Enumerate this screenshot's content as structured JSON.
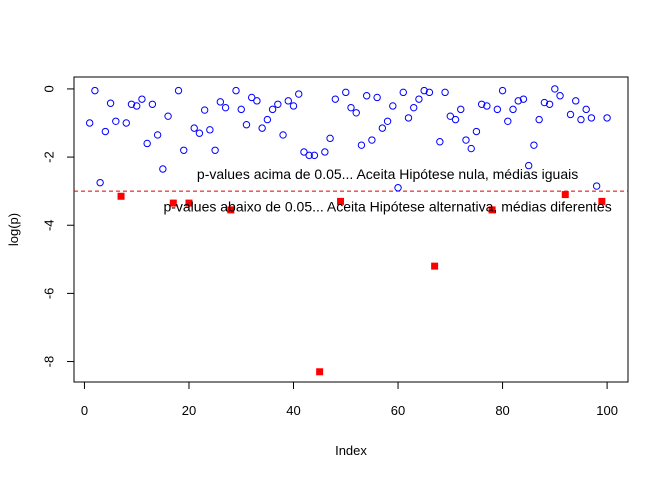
{
  "chart_data": {
    "type": "scatter",
    "title": "",
    "xlabel": "Index",
    "ylabel": "log(p)",
    "xlim": [
      -2,
      104
    ],
    "ylim": [
      -8.6,
      0.35
    ],
    "x_ticks": [
      0,
      20,
      40,
      60,
      80,
      100
    ],
    "y_ticks": [
      0,
      -2,
      -4,
      -6,
      -8
    ],
    "grid": false,
    "legend": "none",
    "threshold": {
      "y": -3.0,
      "color": "#dd0000",
      "style": "dashed"
    },
    "annotations": [
      {
        "text": "p-values acima de 0.05... Aceita Hipótese nula, médias iguais",
        "x": 58,
        "y": -2.65
      },
      {
        "text": "p-values abaixo de 0.05... Aceita Hipótese alternativa, médias diferentes",
        "x": 58,
        "y": -3.6
      }
    ],
    "series": [
      {
        "marker": "open-circle",
        "color": "#0000ff",
        "x": [
          1,
          2,
          3,
          4,
          5,
          6,
          8,
          9,
          10,
          11,
          12,
          13,
          14,
          15,
          16,
          18,
          19,
          21,
          22,
          23,
          24,
          25,
          26,
          27,
          29,
          30,
          31,
          32,
          33,
          34,
          35,
          36,
          37,
          38,
          39,
          40,
          41,
          42,
          43,
          44,
          46,
          47,
          48,
          50,
          51,
          52,
          53,
          54,
          55,
          56,
          57,
          58,
          59,
          60,
          61,
          62,
          63,
          64,
          65,
          66,
          68,
          69,
          70,
          71,
          72,
          73,
          74,
          75,
          76,
          77,
          79,
          80,
          81,
          82,
          83,
          84,
          85,
          86,
          87,
          88,
          89,
          90,
          91,
          93,
          94,
          95,
          96,
          97,
          98,
          100
        ],
        "y": [
          -1.0,
          -0.05,
          -2.75,
          -1.25,
          -0.42,
          -0.95,
          -1.0,
          -0.45,
          -0.5,
          -0.3,
          -1.6,
          -0.45,
          -1.35,
          -2.35,
          -0.8,
          -0.05,
          -1.8,
          -1.15,
          -1.3,
          -0.62,
          -1.2,
          -1.8,
          -0.38,
          -0.55,
          -0.05,
          -0.6,
          -1.05,
          -0.25,
          -0.35,
          -1.15,
          -0.9,
          -0.6,
          -0.45,
          -1.35,
          -0.35,
          -0.5,
          -0.15,
          -1.85,
          -1.95,
          -1.95,
          -1.85,
          -1.45,
          -0.3,
          -0.1,
          -0.55,
          -0.7,
          -1.65,
          -0.2,
          -1.5,
          -0.25,
          -1.15,
          -0.95,
          -0.5,
          -2.9,
          -0.1,
          -0.85,
          -0.55,
          -0.3,
          -0.05,
          -0.1,
          -1.55,
          -0.1,
          -0.8,
          -0.9,
          -0.6,
          -1.5,
          -1.75,
          -1.25,
          -0.45,
          -0.5,
          -0.6,
          -0.05,
          -0.95,
          -0.6,
          -0.35,
          -0.3,
          -2.25,
          -1.65,
          -0.9,
          -0.4,
          -0.45,
          0.0,
          -0.2,
          -0.75,
          -0.35,
          -0.9,
          -0.6,
          -0.85,
          -2.85,
          -0.85
        ]
      },
      {
        "marker": "filled-square",
        "color": "#ff0000",
        "x": [
          7,
          17,
          20,
          28,
          45,
          49,
          67,
          78,
          92,
          99
        ],
        "y": [
          -3.15,
          -3.35,
          -3.35,
          -3.55,
          -8.3,
          -3.3,
          -5.2,
          -3.55,
          -3.1,
          -3.3
        ]
      }
    ]
  }
}
